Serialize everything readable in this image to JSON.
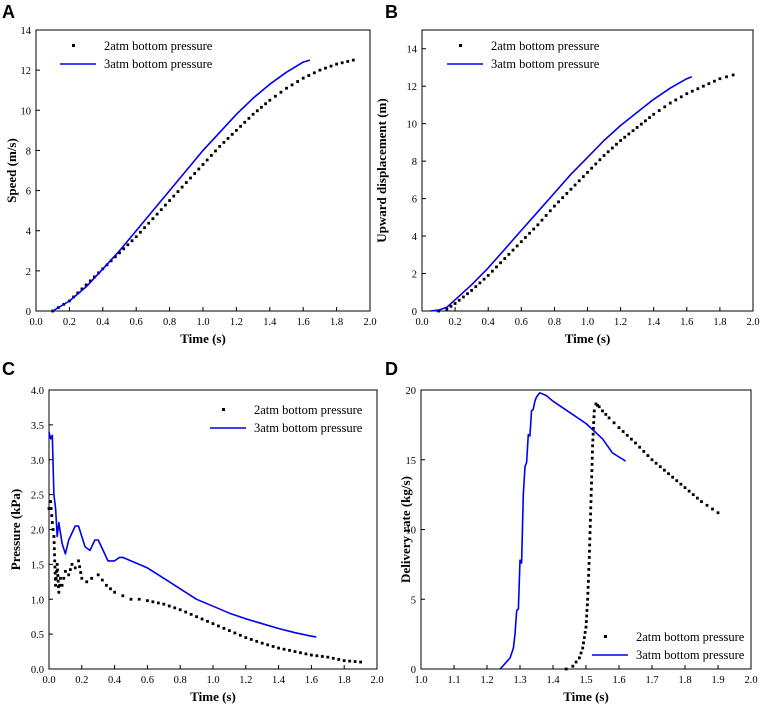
{
  "chart_data": [
    {
      "panel": "A",
      "type": "line",
      "xlabel": "Time (s)",
      "ylabel": "Speed (m/s)",
      "xlim": [
        0,
        2.0
      ],
      "ylim": [
        0,
        14
      ],
      "xticks": [
        0.0,
        0.2,
        0.4,
        0.6,
        0.8,
        1.0,
        1.2,
        1.4,
        1.6,
        1.8,
        2.0
      ],
      "yticks": [
        0,
        2,
        4,
        6,
        8,
        10,
        12,
        14
      ],
      "xtick_decimals": 1,
      "ytick_decimals": 0,
      "legend_position": "top-left",
      "series": [
        {
          "name": "2atm bottom pressure",
          "style": "dots",
          "color": "#000000",
          "x": [
            0.1,
            0.2,
            0.3,
            0.4,
            0.5,
            0.6,
            0.7,
            0.8,
            0.9,
            1.0,
            1.1,
            1.2,
            1.3,
            1.4,
            1.5,
            1.6,
            1.7,
            1.8,
            1.9
          ],
          "y": [
            0.0,
            0.5,
            1.3,
            2.1,
            2.9,
            3.7,
            4.6,
            5.5,
            6.4,
            7.3,
            8.2,
            9.0,
            9.8,
            10.5,
            11.1,
            11.6,
            12.0,
            12.3,
            12.5
          ]
        },
        {
          "name": "3atm bottom pressure",
          "style": "line",
          "color": "#0000ee",
          "x": [
            0.1,
            0.2,
            0.3,
            0.4,
            0.5,
            0.6,
            0.7,
            0.8,
            0.9,
            1.0,
            1.1,
            1.2,
            1.3,
            1.4,
            1.5,
            1.6,
            1.64
          ],
          "y": [
            0.0,
            0.5,
            1.2,
            2.1,
            3.0,
            4.0,
            5.0,
            6.0,
            7.0,
            8.0,
            8.9,
            9.8,
            10.6,
            11.3,
            11.9,
            12.4,
            12.5
          ]
        }
      ]
    },
    {
      "panel": "B",
      "type": "line",
      "xlabel": "Time (s)",
      "ylabel": "Upward displacement (m)",
      "xlim": [
        0,
        2.0
      ],
      "ylim": [
        0,
        15
      ],
      "xticks": [
        0.0,
        0.2,
        0.4,
        0.6,
        0.8,
        1.0,
        1.2,
        1.4,
        1.6,
        1.8,
        2.0
      ],
      "yticks": [
        0,
        2,
        4,
        6,
        8,
        10,
        12,
        14
      ],
      "xtick_decimals": 1,
      "ytick_decimals": 0,
      "legend_position": "top-left",
      "series": [
        {
          "name": "2atm bottom pressure",
          "style": "dots",
          "color": "#000000",
          "x": [
            0.1,
            0.15,
            0.2,
            0.3,
            0.4,
            0.5,
            0.6,
            0.7,
            0.8,
            0.9,
            1.0,
            1.1,
            1.2,
            1.3,
            1.4,
            1.5,
            1.6,
            1.7,
            1.8,
            1.88
          ],
          "y": [
            0.0,
            0.1,
            0.4,
            1.1,
            1.9,
            2.8,
            3.7,
            4.6,
            5.6,
            6.5,
            7.4,
            8.3,
            9.1,
            9.8,
            10.5,
            11.1,
            11.6,
            12.0,
            12.4,
            12.6
          ]
        },
        {
          "name": "3atm bottom pressure",
          "style": "line",
          "color": "#0000ee",
          "x": [
            0.05,
            0.1,
            0.15,
            0.2,
            0.3,
            0.4,
            0.5,
            0.6,
            0.7,
            0.8,
            0.9,
            1.0,
            1.1,
            1.2,
            1.3,
            1.4,
            1.5,
            1.6,
            1.63
          ],
          "y": [
            0.0,
            0.05,
            0.2,
            0.6,
            1.4,
            2.3,
            3.3,
            4.3,
            5.3,
            6.3,
            7.3,
            8.2,
            9.1,
            9.9,
            10.6,
            11.3,
            11.9,
            12.4,
            12.5
          ]
        }
      ]
    },
    {
      "panel": "C",
      "type": "line",
      "xlabel": "Time (s)",
      "ylabel": "Pressure (kPa)",
      "xlim": [
        0,
        2.0
      ],
      "ylim": [
        0,
        4.0
      ],
      "xticks": [
        0.0,
        0.2,
        0.4,
        0.6,
        0.8,
        1.0,
        1.2,
        1.4,
        1.6,
        1.8,
        2.0
      ],
      "yticks": [
        0.0,
        0.5,
        1.0,
        1.5,
        2.0,
        2.5,
        3.0,
        3.5,
        4.0
      ],
      "xtick_decimals": 1,
      "ytick_decimals": 1,
      "legend_position": "top-right",
      "series": [
        {
          "name": "2atm bottom pressure",
          "style": "dots",
          "color": "#000000",
          "x": [
            0.0,
            0.01,
            0.02,
            0.03,
            0.04,
            0.05,
            0.06,
            0.07,
            0.08,
            0.09,
            0.1,
            0.12,
            0.14,
            0.16,
            0.18,
            0.2,
            0.23,
            0.26,
            0.3,
            0.35,
            0.4,
            0.45,
            0.5,
            0.55,
            0.6,
            0.7,
            0.8,
            0.9,
            1.0,
            1.1,
            1.2,
            1.3,
            1.4,
            1.5,
            1.6,
            1.7,
            1.8,
            1.9
          ],
          "y": [
            2.3,
            2.4,
            2.1,
            1.9,
            1.2,
            1.5,
            1.1,
            1.3,
            1.2,
            1.3,
            1.4,
            1.35,
            1.5,
            1.45,
            1.55,
            1.3,
            1.25,
            1.3,
            1.35,
            1.2,
            1.1,
            1.05,
            1.0,
            1.0,
            0.98,
            0.93,
            0.85,
            0.75,
            0.65,
            0.55,
            0.45,
            0.37,
            0.3,
            0.25,
            0.2,
            0.17,
            0.12,
            0.1
          ]
        },
        {
          "name": "3atm bottom pressure",
          "style": "line",
          "color": "#0000ee",
          "x": [
            0.0,
            0.01,
            0.02,
            0.03,
            0.04,
            0.05,
            0.06,
            0.08,
            0.1,
            0.12,
            0.14,
            0.16,
            0.18,
            0.2,
            0.22,
            0.25,
            0.28,
            0.3,
            0.33,
            0.36,
            0.4,
            0.43,
            0.45,
            0.5,
            0.6,
            0.7,
            0.8,
            0.9,
            1.0,
            1.1,
            1.2,
            1.3,
            1.4,
            1.5,
            1.6,
            1.63
          ],
          "y": [
            3.4,
            3.3,
            3.35,
            2.5,
            2.3,
            1.9,
            2.1,
            1.8,
            1.65,
            1.85,
            1.95,
            2.05,
            2.05,
            1.9,
            1.75,
            1.7,
            1.85,
            1.85,
            1.7,
            1.55,
            1.55,
            1.6,
            1.6,
            1.55,
            1.45,
            1.3,
            1.15,
            1.0,
            0.9,
            0.8,
            0.72,
            0.65,
            0.58,
            0.52,
            0.47,
            0.46
          ]
        }
      ]
    },
    {
      "panel": "D",
      "type": "line",
      "xlabel": "Time (s)",
      "ylabel": "Delivery rate (kg/s)",
      "xlim": [
        1.0,
        2.0
      ],
      "ylim": [
        0,
        20
      ],
      "xticks": [
        1.0,
        1.1,
        1.2,
        1.3,
        1.4,
        1.5,
        1.6,
        1.7,
        1.8,
        1.9,
        2.0
      ],
      "yticks": [
        0,
        5,
        10,
        15,
        20
      ],
      "xtick_decimals": 1,
      "ytick_decimals": 0,
      "legend_position": "bottom-right",
      "series": [
        {
          "name": "2atm bottom pressure",
          "style": "dots",
          "color": "#000000",
          "x": [
            1.44,
            1.46,
            1.48,
            1.49,
            1.5,
            1.505,
            1.51,
            1.515,
            1.52,
            1.525,
            1.53,
            1.535,
            1.54,
            1.55,
            1.57,
            1.6,
            1.65,
            1.7,
            1.75,
            1.8,
            1.85,
            1.9
          ],
          "y": [
            0.0,
            0.2,
            0.8,
            1.5,
            3.0,
            5.0,
            8.0,
            12.0,
            16.0,
            18.5,
            19.0,
            18.9,
            18.8,
            18.5,
            18.0,
            17.3,
            16.2,
            15.0,
            14.0,
            13.0,
            12.0,
            11.2
          ]
        },
        {
          "name": "3atm bottom pressure",
          "style": "line",
          "color": "#0000ee",
          "x": [
            1.24,
            1.27,
            1.28,
            1.285,
            1.29,
            1.295,
            1.3,
            1.305,
            1.31,
            1.315,
            1.32,
            1.325,
            1.33,
            1.335,
            1.34,
            1.345,
            1.35,
            1.36,
            1.37,
            1.38,
            1.4,
            1.45,
            1.5,
            1.55,
            1.58,
            1.6,
            1.62
          ],
          "y": [
            0.0,
            0.8,
            1.5,
            2.5,
            4.2,
            4.3,
            7.8,
            7.6,
            12.5,
            14.5,
            14.8,
            16.8,
            16.7,
            18.5,
            18.6,
            19.2,
            19.5,
            19.8,
            19.7,
            19.6,
            19.2,
            18.4,
            17.6,
            16.5,
            15.5,
            15.2,
            14.9
          ]
        }
      ]
    }
  ]
}
